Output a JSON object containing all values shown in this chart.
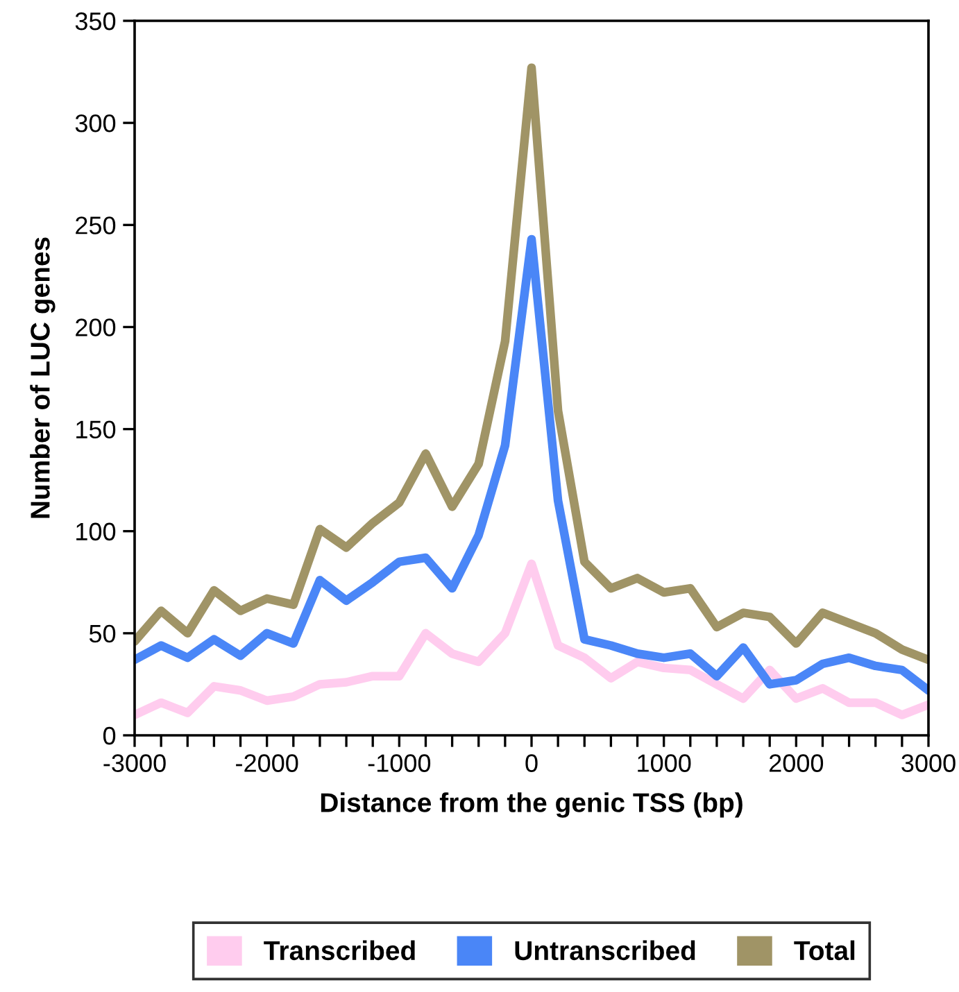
{
  "chart_data": {
    "type": "line",
    "xlabel": "Distance from the genic TSS (bp)",
    "ylabel": "Number of LUC genes",
    "x": [
      -3000,
      -2800,
      -2600,
      -2400,
      -2200,
      -2000,
      -1800,
      -1600,
      -1400,
      -1200,
      -1000,
      -800,
      -600,
      -400,
      -200,
      0,
      200,
      400,
      600,
      800,
      1000,
      1200,
      1400,
      1600,
      1800,
      2000,
      2200,
      2400,
      2600,
      2800,
      3000
    ],
    "series": [
      {
        "name": "Transcribed",
        "color": "#ffccee",
        "values": [
          10,
          16,
          11,
          24,
          22,
          17,
          19,
          25,
          26,
          29,
          29,
          50,
          40,
          36,
          50,
          84,
          44,
          38,
          28,
          36,
          33,
          32,
          25,
          18,
          32,
          18,
          23,
          16,
          16,
          10,
          15
        ]
      },
      {
        "name": "Untranscribed",
        "color": "#4a86f7",
        "values": [
          37,
          44,
          38,
          47,
          39,
          50,
          45,
          76,
          66,
          75,
          85,
          87,
          72,
          98,
          142,
          243,
          115,
          47,
          44,
          40,
          38,
          40,
          29,
          43,
          25,
          27,
          35,
          38,
          34,
          32,
          22
        ]
      },
      {
        "name": "Total",
        "color": "#a09466",
        "values": [
          46,
          61,
          50,
          71,
          61,
          67,
          64,
          101,
          92,
          104,
          114,
          138,
          112,
          133,
          193,
          327,
          159,
          85,
          72,
          77,
          70,
          72,
          53,
          60,
          58,
          45,
          60,
          55,
          50,
          42,
          37
        ]
      }
    ],
    "xlim": [
      -3000,
      3000
    ],
    "ylim": [
      0,
      350
    ],
    "xticks": [
      -3000,
      {
        "value": -2800,
        "label": null
      },
      {
        "value": -2600,
        "label": null
      },
      {
        "value": -2400,
        "label": null
      },
      {
        "value": -2200,
        "label": null
      },
      -2000,
      {
        "value": -1800,
        "label": null
      },
      {
        "value": -1600,
        "label": null
      },
      {
        "value": -1400,
        "label": null
      },
      {
        "value": -1200,
        "label": null
      },
      -1000,
      {
        "value": -800,
        "label": null
      },
      {
        "value": -600,
        "label": null
      },
      {
        "value": -400,
        "label": null
      },
      {
        "value": -200,
        "label": null
      },
      0,
      {
        "value": 200,
        "label": null
      },
      {
        "value": 400,
        "label": null
      },
      {
        "value": 600,
        "label": null
      },
      {
        "value": 800,
        "label": null
      },
      1000,
      {
        "value": 1200,
        "label": null
      },
      {
        "value": 1400,
        "label": null
      },
      {
        "value": 1600,
        "label": null
      },
      {
        "value": 1800,
        "label": null
      },
      2000,
      {
        "value": 2200,
        "label": null
      },
      {
        "value": 2400,
        "label": null
      },
      {
        "value": 2600,
        "label": null
      },
      {
        "value": 2800,
        "label": null
      },
      3000
    ],
    "yticks": [
      0,
      50,
      100,
      150,
      200,
      250,
      300,
      350
    ],
    "grid": false,
    "legend": "bottom",
    "marker": "none",
    "line_style": "solid"
  }
}
